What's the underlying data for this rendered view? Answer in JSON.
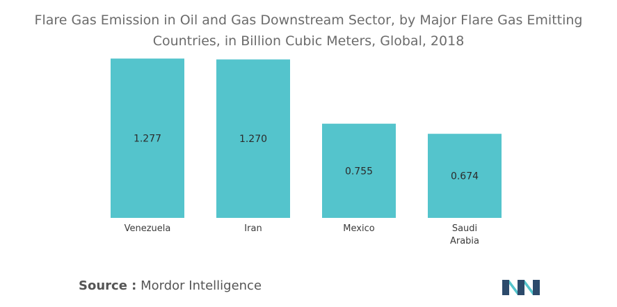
{
  "chart_data": {
    "type": "bar",
    "title": "Flare Gas Emission in Oil and Gas Downstream Sector, by Major Flare Gas Emitting Countries, in Billion Cubic Meters, Global, 2018",
    "title_lines": [
      "Flare Gas Emission in Oil and Gas Downstream Sector, by Major Flare Gas Emitting",
      "Countries, in Billion Cubic Meters, Global, 2018"
    ],
    "categories": [
      "Venezuela",
      "Iran",
      "Mexico",
      "Saudi Arabia"
    ],
    "category_lines": [
      [
        "Venezuela"
      ],
      [
        "Iran"
      ],
      [
        "Mexico"
      ],
      [
        "Saudi",
        "Arabia"
      ]
    ],
    "values": [
      1.277,
      1.27,
      0.755,
      0.674
    ],
    "value_labels": [
      "1.277",
      "1.270",
      "0.755",
      "0.674"
    ],
    "ylim": [
      0,
      1.3
    ],
    "xlabel": "",
    "ylabel": "",
    "grid": false,
    "bar_color": "#54c4cc"
  },
  "source": {
    "label": "Source :",
    "text": "Mordor Intelligence"
  },
  "logo": {
    "icon": "mordor-intelligence-logo",
    "colors": [
      "#2c4a6b",
      "#54c4cc"
    ]
  }
}
